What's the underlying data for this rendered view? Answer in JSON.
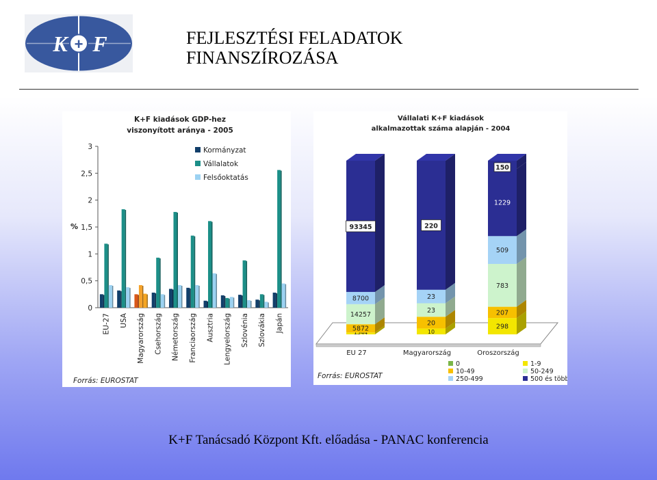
{
  "header": {
    "logo_text": "K+F",
    "title_line1": "FEJLESZTÉSI FELADATOK",
    "title_line2": "FINANSZÍROZÁSA"
  },
  "footer": {
    "text": "K+F Tanácsadó Központ Kft. előadása - PANAC konferencia"
  },
  "colors": {
    "kormanyzat": "#123f6a",
    "vallalatok": "#1c8f88",
    "felsooktatas": "#9cd2f2",
    "hungary_highlight": "#f07e1b",
    "s0": "#7ab648",
    "s1_9": "#f3e600",
    "s10_49": "#f7c000",
    "s50_249": "#cdf3cc",
    "s250_499": "#a5d3f6",
    "s500": "#2b2e93"
  },
  "chart_data": [
    {
      "type": "bar",
      "title": "K+F kiadások GDP-hez viszonyított aránya - 2005",
      "ylabel": "%",
      "xlabel": "",
      "ylim": [
        0,
        3
      ],
      "yticks": [
        "0",
        "0,5",
        "1",
        "1,5",
        "2",
        "2,5",
        "3"
      ],
      "categories": [
        "EU-27",
        "USA",
        "Magyarország",
        "Csehország",
        "Németország",
        "Franciaország",
        "Ausztria",
        "Lengyelország",
        "Szlovénia",
        "Szlovákia",
        "Japán"
      ],
      "highlight": "Magyarország",
      "legend_position": "top-right",
      "series": [
        {
          "name": "Kormányzat",
          "values": [
            0.25,
            0.32,
            0.25,
            0.28,
            0.35,
            0.37,
            0.13,
            0.23,
            0.24,
            0.15,
            0.28
          ]
        },
        {
          "name": "Vállalatok",
          "values": [
            1.19,
            1.83,
            0.42,
            0.93,
            1.78,
            1.34,
            1.61,
            0.18,
            0.88,
            0.25,
            2.56
          ]
        },
        {
          "name": "Felsőoktatás",
          "values": [
            0.42,
            0.38,
            0.26,
            0.25,
            0.42,
            0.42,
            0.64,
            0.2,
            0.14,
            0.11,
            0.45
          ]
        }
      ],
      "source": "Forrás: EUROSTAT"
    },
    {
      "type": "bar",
      "stacked": true,
      "percent": true,
      "title": "Vállalati K+F kiadások alkalmazottak száma alapján - 2004",
      "categories": [
        "EU 27",
        "Magyarország",
        "Oroszország"
      ],
      "legend_position": "bottom",
      "series": [
        {
          "name": "0",
          "values": [
            null,
            null,
            null
          ]
        },
        {
          "name": "1-9",
          "values": [
            1344,
            10,
            298
          ]
        },
        {
          "name": "10-49",
          "values": [
            5872,
            20,
            207
          ]
        },
        {
          "name": "50-249",
          "values": [
            14257,
            23,
            783
          ]
        },
        {
          "name": "250-499",
          "values": [
            8700,
            23,
            509
          ]
        },
        {
          "name": "500 és több",
          "values": [
            93345,
            220,
            1229
          ]
        }
      ],
      "extra_labels": {
        "Oroszország": "150"
      },
      "source": "Forrás: EUROSTAT"
    }
  ]
}
